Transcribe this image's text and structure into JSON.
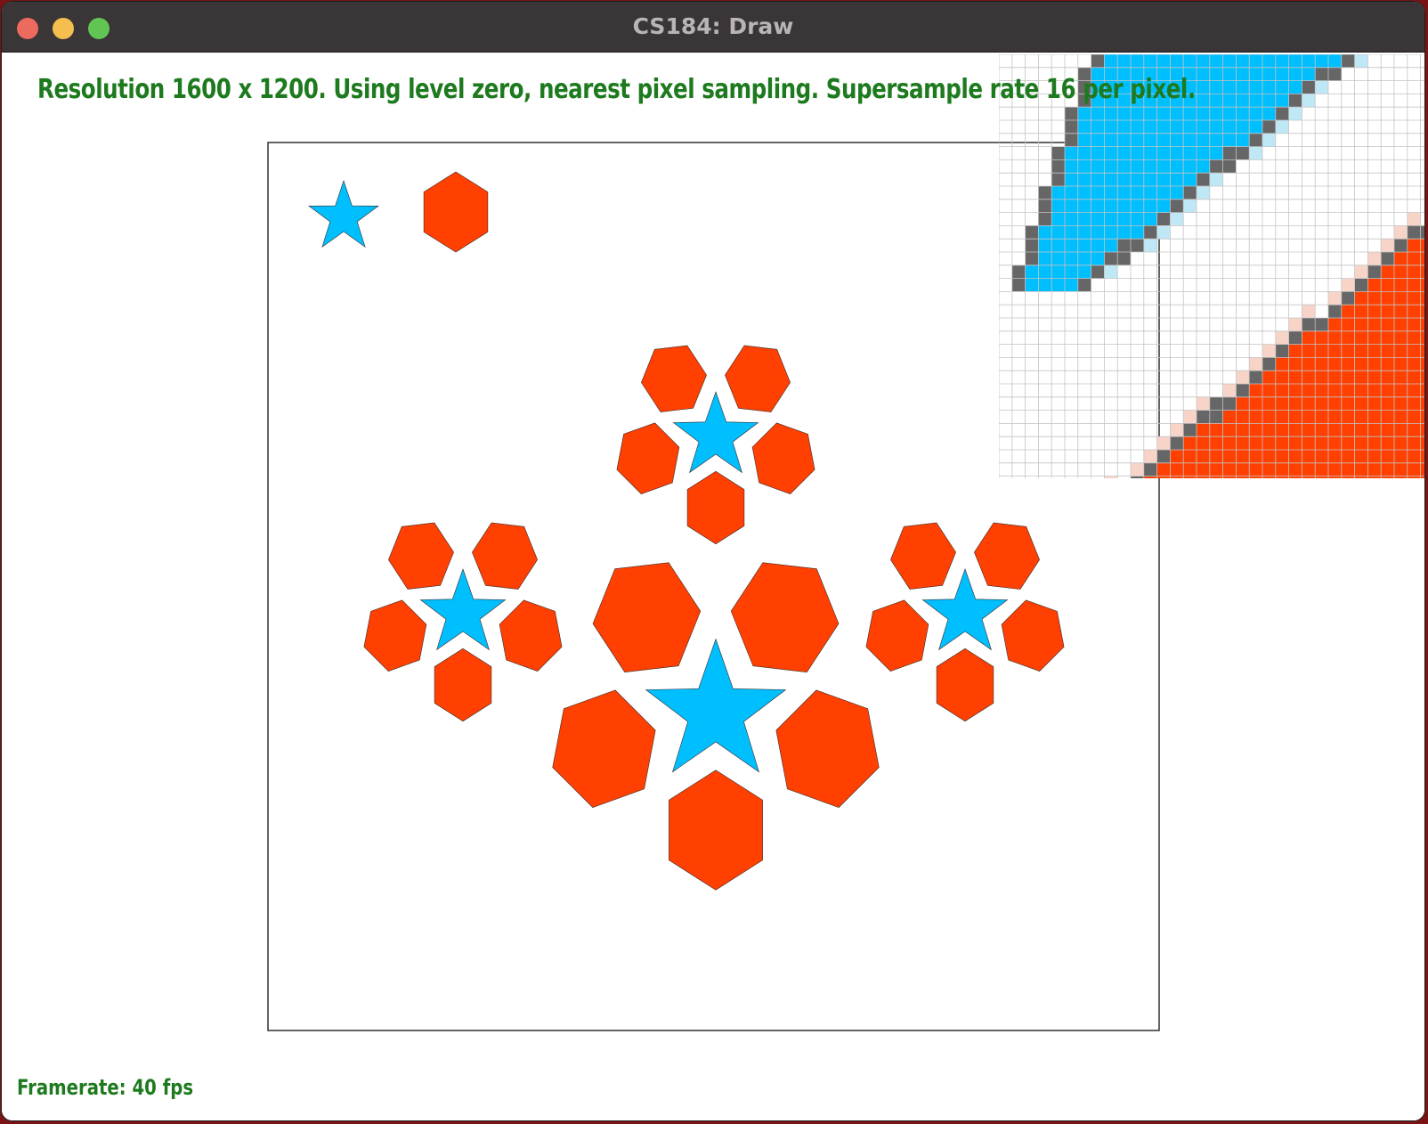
{
  "window": {
    "title": "CS184: Draw"
  },
  "status": {
    "message": "Resolution 1600 x 1200. Using level zero, nearest pixel sampling. Supersample rate 16 per pixel.",
    "framerate": "Framerate: 40 fps"
  },
  "colors": {
    "star": "#00bfff",
    "polygon": "#ff4000",
    "text": "#1e7a1e",
    "titlebar": "#3a3536",
    "zoom_edge": "#666666"
  },
  "icons": {
    "close": "close-icon",
    "minimize": "minimize-icon",
    "maximize": "maximize-icon"
  }
}
